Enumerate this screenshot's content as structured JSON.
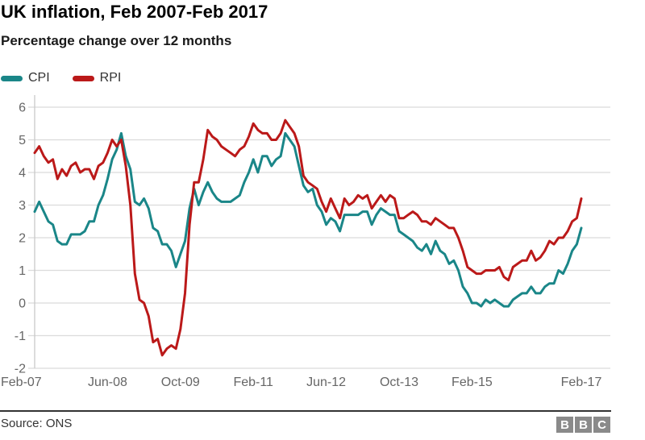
{
  "header": {
    "title": "UK inflation, Feb 2007-Feb 2017",
    "subtitle": "Percentage change over 12 months"
  },
  "footer": {
    "source": "Source: ONS",
    "logo_blocks": [
      "B",
      "B",
      "C"
    ]
  },
  "colors": {
    "cpi": "#1a8688",
    "rpi": "#bb1919",
    "gridline": "#dbdbdb",
    "axis_line": "#c9c9c9",
    "tick_text": "#666666",
    "footer_rule": "#333333",
    "logo_block": "#8a8a8a"
  },
  "chart_data": {
    "type": "line",
    "title": "UK inflation, Feb 2007-Feb 2017",
    "subtitle": "Percentage change over 12 months",
    "ylabel": "Percentage change over 12 months",
    "xlabel": "",
    "ylim": [
      -2,
      6
    ],
    "y_ticks": [
      6,
      5,
      4,
      3,
      2,
      1,
      0,
      -1,
      -2
    ],
    "grid": true,
    "legend_position": "top-left",
    "x_unit": "month",
    "months_total": 120,
    "x_ticks": [
      {
        "month": 0,
        "label": "Feb-07"
      },
      {
        "month": 16,
        "label": "Jun-08"
      },
      {
        "month": 32,
        "label": "Oct-09"
      },
      {
        "month": 48,
        "label": "Feb-11"
      },
      {
        "month": 64,
        "label": "Jun-12"
      },
      {
        "month": 80,
        "label": "Oct-13"
      },
      {
        "month": 96,
        "label": "Feb-15"
      },
      {
        "month": 120,
        "label": "Feb-17"
      }
    ],
    "series": [
      {
        "name": "CPI",
        "color": "#1a8688",
        "start": "Feb-2007",
        "values": [
          2.8,
          3.1,
          2.8,
          2.5,
          2.4,
          1.9,
          1.8,
          1.8,
          2.1,
          2.1,
          2.1,
          2.2,
          2.5,
          2.5,
          3.0,
          3.3,
          3.8,
          4.4,
          4.7,
          5.2,
          4.5,
          4.1,
          3.1,
          3.0,
          3.2,
          2.9,
          2.3,
          2.2,
          1.8,
          1.8,
          1.6,
          1.1,
          1.5,
          1.9,
          2.9,
          3.5,
          3.0,
          3.4,
          3.7,
          3.4,
          3.2,
          3.1,
          3.1,
          3.1,
          3.2,
          3.3,
          3.7,
          4.0,
          4.4,
          4.0,
          4.5,
          4.5,
          4.2,
          4.4,
          4.5,
          5.2,
          5.0,
          4.8,
          4.2,
          3.6,
          3.4,
          3.5,
          3.0,
          2.8,
          2.4,
          2.6,
          2.5,
          2.2,
          2.7,
          2.7,
          2.7,
          2.7,
          2.8,
          2.8,
          2.4,
          2.7,
          2.9,
          2.8,
          2.7,
          2.7,
          2.2,
          2.1,
          2.0,
          1.9,
          1.7,
          1.6,
          1.8,
          1.5,
          1.9,
          1.6,
          1.5,
          1.2,
          1.3,
          1.0,
          0.5,
          0.3,
          0.0,
          0.0,
          -0.1,
          0.1,
          0.0,
          0.1,
          0.0,
          -0.1,
          -0.1,
          0.1,
          0.2,
          0.3,
          0.3,
          0.5,
          0.3,
          0.3,
          0.5,
          0.6,
          0.6,
          1.0,
          0.9,
          1.2,
          1.6,
          1.8,
          2.3
        ]
      },
      {
        "name": "RPI",
        "color": "#bb1919",
        "start": "Feb-2007",
        "values": [
          4.6,
          4.8,
          4.5,
          4.3,
          4.4,
          3.8,
          4.1,
          3.9,
          4.2,
          4.3,
          4.0,
          4.1,
          4.1,
          3.8,
          4.2,
          4.3,
          4.6,
          5.0,
          4.8,
          5.0,
          4.2,
          3.0,
          0.9,
          0.1,
          0.0,
          -0.4,
          -1.2,
          -1.1,
          -1.6,
          -1.4,
          -1.3,
          -1.4,
          -0.8,
          0.3,
          2.4,
          3.7,
          3.7,
          4.4,
          5.3,
          5.1,
          5.0,
          4.8,
          4.7,
          4.6,
          4.5,
          4.7,
          4.8,
          5.1,
          5.5,
          5.3,
          5.2,
          5.2,
          5.0,
          5.0,
          5.2,
          5.6,
          5.4,
          5.2,
          4.8,
          3.9,
          3.7,
          3.6,
          3.5,
          3.1,
          2.8,
          3.2,
          2.9,
          2.6,
          3.2,
          3.0,
          3.1,
          3.3,
          3.2,
          3.3,
          2.9,
          3.1,
          3.3,
          3.1,
          3.3,
          3.2,
          2.6,
          2.6,
          2.7,
          2.8,
          2.7,
          2.5,
          2.5,
          2.4,
          2.6,
          2.5,
          2.4,
          2.3,
          2.3,
          2.0,
          1.6,
          1.1,
          1.0,
          0.9,
          0.9,
          1.0,
          1.0,
          1.0,
          1.1,
          0.8,
          0.7,
          1.1,
          1.2,
          1.3,
          1.3,
          1.6,
          1.3,
          1.4,
          1.6,
          1.9,
          1.8,
          2.0,
          2.0,
          2.2,
          2.5,
          2.6,
          3.2
        ]
      }
    ]
  }
}
